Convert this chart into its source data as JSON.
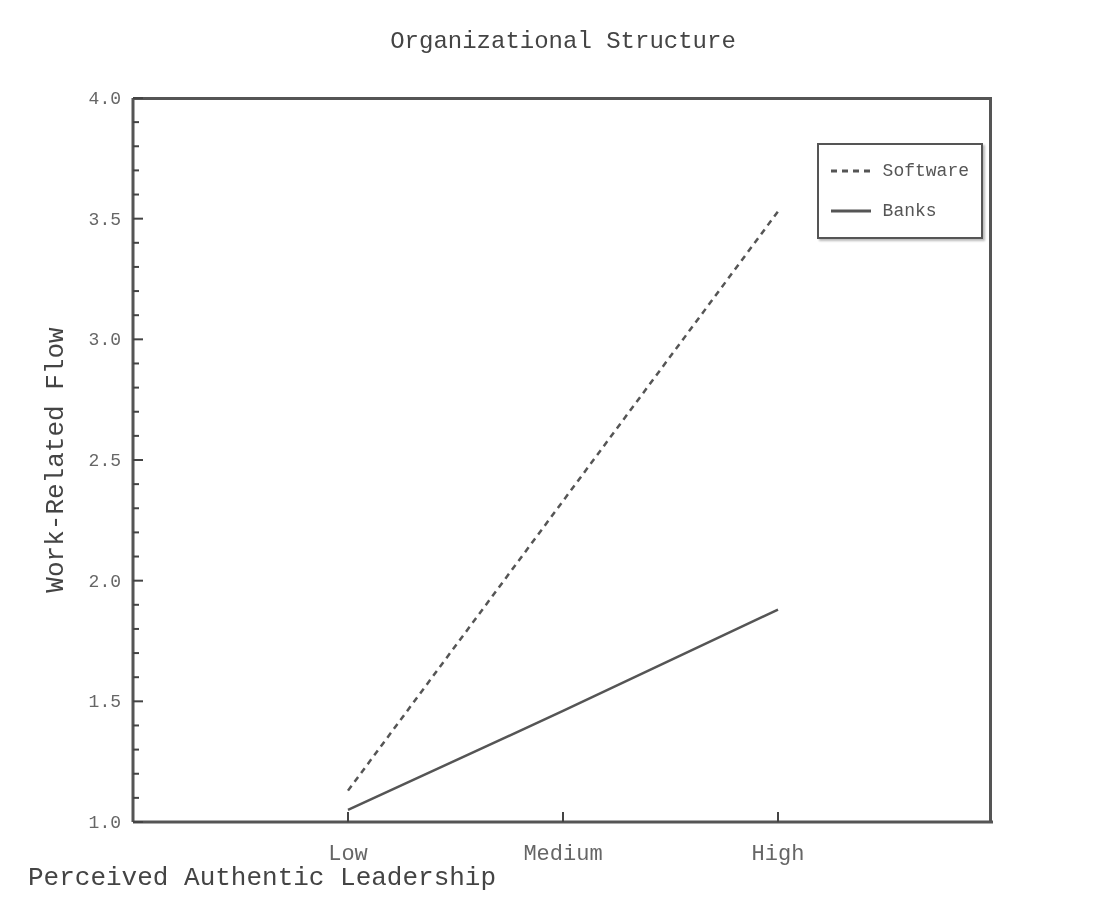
{
  "chart_data": {
    "type": "line",
    "title": "Organizational Structure",
    "xlabel": "Perceived Authentic Leadership",
    "ylabel": "Work-Related Flow",
    "categories": [
      "Low",
      "Medium",
      "High"
    ],
    "series": [
      {
        "name": "Software",
        "color": "#555555",
        "line_style": "dashed",
        "values": [
          1.13,
          2.33,
          3.53
        ]
      },
      {
        "name": "Banks",
        "color": "#555555",
        "line_style": "solid",
        "values": [
          1.05,
          1.46,
          1.88
        ]
      }
    ],
    "ylim": [
      1,
      4
    ],
    "yticks": [
      {
        "value": 1,
        "label": "1.0"
      },
      {
        "value": 1.1,
        "label": null
      },
      {
        "value": 1.2,
        "label": null
      },
      {
        "value": 1.3,
        "label": null
      },
      {
        "value": 1.4,
        "label": null
      },
      {
        "value": 1.5,
        "label": "1.5"
      },
      {
        "value": 1.6,
        "label": null
      },
      {
        "value": 1.7,
        "label": null
      },
      {
        "value": 1.8,
        "label": null
      },
      {
        "value": 1.9,
        "label": null
      },
      {
        "value": 2,
        "label": "2.0"
      },
      {
        "value": 2.1,
        "label": null
      },
      {
        "value": 2.2,
        "label": null
      },
      {
        "value": 2.3,
        "label": null
      },
      {
        "value": 2.4,
        "label": null
      },
      {
        "value": 2.5,
        "label": "2.5"
      },
      {
        "value": 2.6,
        "label": null
      },
      {
        "value": 2.7,
        "label": null
      },
      {
        "value": 2.8,
        "label": null
      },
      {
        "value": 2.9,
        "label": null
      },
      {
        "value": 3,
        "label": "3.0"
      },
      {
        "value": 3.1,
        "label": null
      },
      {
        "value": 3.2,
        "label": null
      },
      {
        "value": 3.3,
        "label": null
      },
      {
        "value": 3.4,
        "label": null
      },
      {
        "value": 3.5,
        "label": "3.5"
      },
      {
        "value": 3.6,
        "label": null
      },
      {
        "value": 3.7,
        "label": null
      },
      {
        "value": 3.8,
        "label": null
      },
      {
        "value": 3.9,
        "label": null
      },
      {
        "value": 4,
        "label": "4.0"
      }
    ],
    "legend": "top right",
    "grid": false,
    "marker": "none"
  }
}
